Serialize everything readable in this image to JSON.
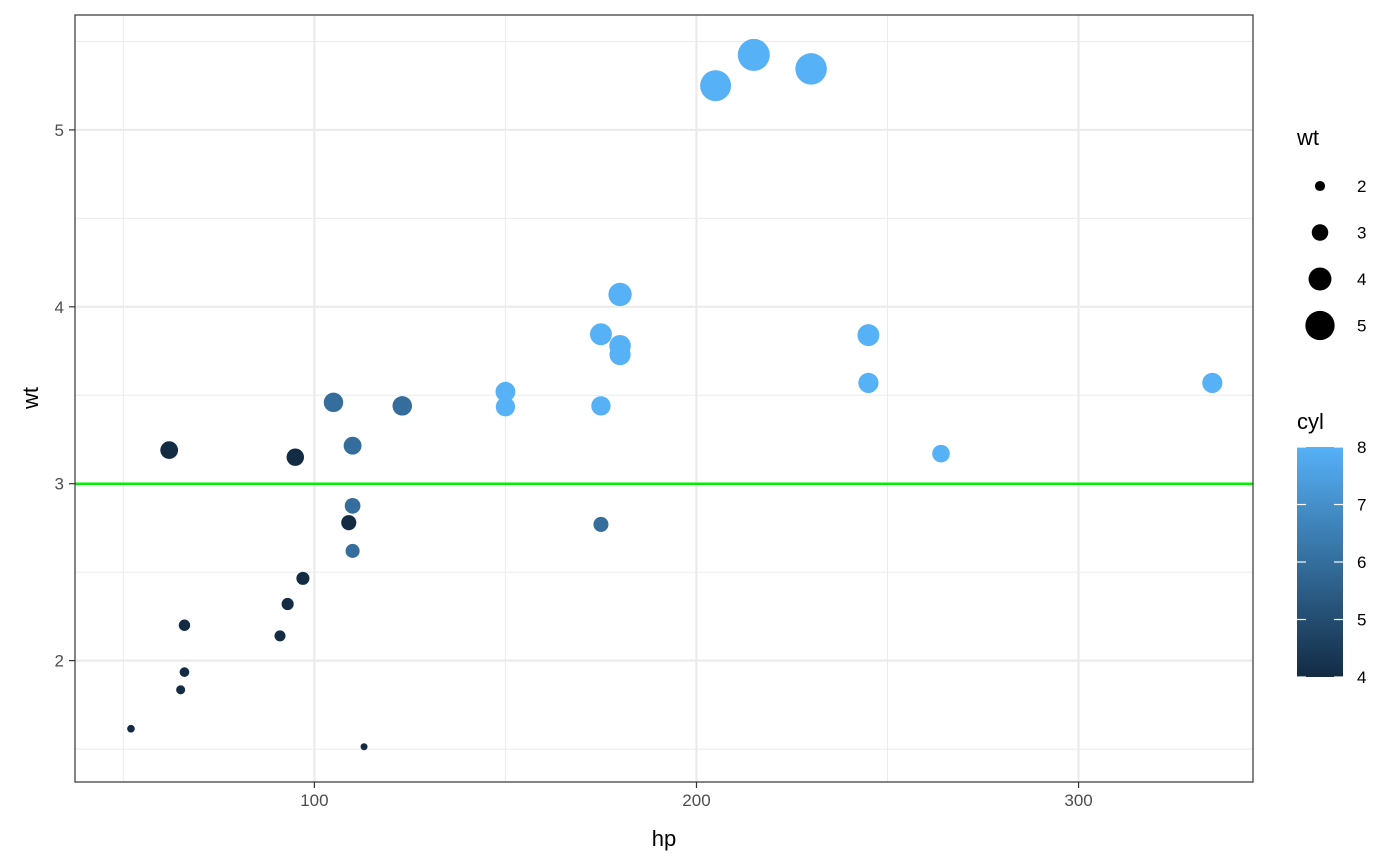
{
  "chart_data": {
    "type": "scatter",
    "title": "",
    "xlabel": "hp",
    "ylabel": "wt",
    "xlim": [
      37.35,
      345.65
    ],
    "ylim": [
      1.3139,
      5.6496
    ],
    "x_ticks": [
      100,
      200,
      300
    ],
    "y_ticks": [
      2,
      3,
      4,
      5
    ],
    "grid": true,
    "reference_line": {
      "y": 3,
      "color": "#00ee00"
    },
    "size_legend": {
      "title": "wt",
      "breaks": [
        2,
        3,
        4,
        5
      ],
      "labels": [
        "2",
        "3",
        "4",
        "5"
      ]
    },
    "color_legend": {
      "title": "cyl",
      "breaks": [
        4,
        5,
        6,
        7,
        8
      ],
      "labels": [
        "4",
        "5",
        "6",
        "7",
        "8"
      ],
      "low_color": "#132b43",
      "high_color": "#56b1f7",
      "limits": [
        4,
        8
      ]
    },
    "points": [
      {
        "hp": 110,
        "wt": 2.62,
        "cyl": 6
      },
      {
        "hp": 110,
        "wt": 2.875,
        "cyl": 6
      },
      {
        "hp": 93,
        "wt": 2.32,
        "cyl": 4
      },
      {
        "hp": 110,
        "wt": 3.215,
        "cyl": 6
      },
      {
        "hp": 175,
        "wt": 3.44,
        "cyl": 8
      },
      {
        "hp": 105,
        "wt": 3.46,
        "cyl": 6
      },
      {
        "hp": 245,
        "wt": 3.57,
        "cyl": 8
      },
      {
        "hp": 62,
        "wt": 3.19,
        "cyl": 4
      },
      {
        "hp": 95,
        "wt": 3.15,
        "cyl": 4
      },
      {
        "hp": 123,
        "wt": 3.44,
        "cyl": 6
      },
      {
        "hp": 123,
        "wt": 3.44,
        "cyl": 6
      },
      {
        "hp": 180,
        "wt": 4.07,
        "cyl": 8
      },
      {
        "hp": 180,
        "wt": 3.73,
        "cyl": 8
      },
      {
        "hp": 180,
        "wt": 3.78,
        "cyl": 8
      },
      {
        "hp": 205,
        "wt": 5.25,
        "cyl": 8
      },
      {
        "hp": 215,
        "wt": 5.424,
        "cyl": 8
      },
      {
        "hp": 230,
        "wt": 5.345,
        "cyl": 8
      },
      {
        "hp": 66,
        "wt": 2.2,
        "cyl": 4
      },
      {
        "hp": 52,
        "wt": 1.615,
        "cyl": 4
      },
      {
        "hp": 65,
        "wt": 1.835,
        "cyl": 4
      },
      {
        "hp": 97,
        "wt": 2.465,
        "cyl": 4
      },
      {
        "hp": 150,
        "wt": 3.52,
        "cyl": 8
      },
      {
        "hp": 150,
        "wt": 3.435,
        "cyl": 8
      },
      {
        "hp": 245,
        "wt": 3.84,
        "cyl": 8
      },
      {
        "hp": 175,
        "wt": 3.845,
        "cyl": 8
      },
      {
        "hp": 66,
        "wt": 1.935,
        "cyl": 4
      },
      {
        "hp": 91,
        "wt": 2.14,
        "cyl": 4
      },
      {
        "hp": 113,
        "wt": 1.513,
        "cyl": 4
      },
      {
        "hp": 264,
        "wt": 3.17,
        "cyl": 8
      },
      {
        "hp": 175,
        "wt": 2.77,
        "cyl": 6
      },
      {
        "hp": 335,
        "wt": 3.57,
        "cyl": 8
      },
      {
        "hp": 109,
        "wt": 2.78,
        "cyl": 4
      }
    ]
  }
}
